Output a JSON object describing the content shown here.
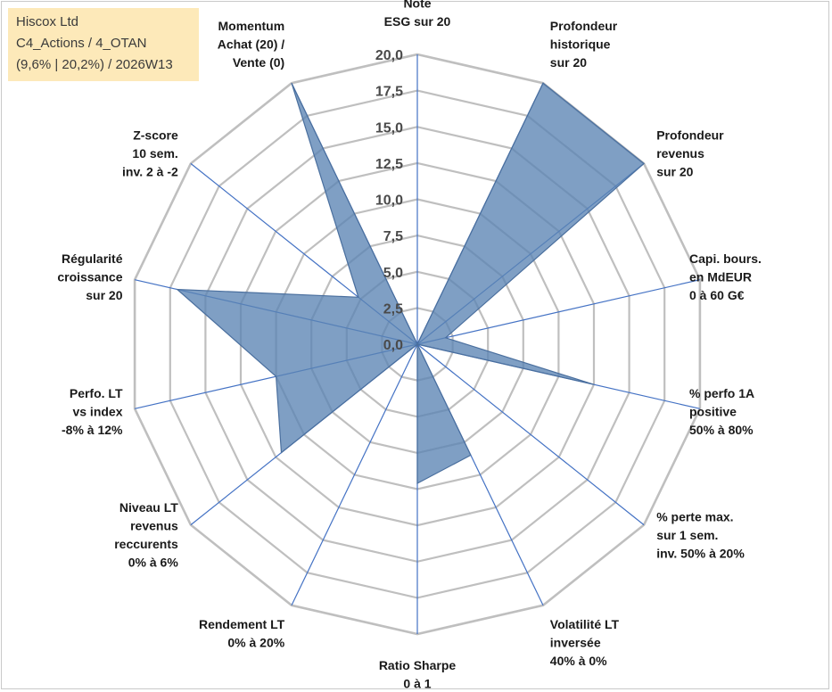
{
  "info": {
    "company": "Hiscox Ltd",
    "category": "C4_Actions / 4_OTAN",
    "period": "(9,6% | 20,2%) / 2026W13"
  },
  "colors": {
    "grid": "#bfbfbf",
    "spoke": "#4472c4",
    "fill": "#5b84b4",
    "stroke": "#4a6f9e"
  },
  "chart_data": {
    "type": "radar",
    "title": "",
    "rmin": 0,
    "rmax": 20,
    "ticks": [
      "0,0",
      "2,5",
      "5,0",
      "7,5",
      "10,0",
      "12,5",
      "15,0",
      "17,5",
      "20,0"
    ],
    "axes": [
      {
        "label": [
          "Note",
          "ESG sur 20"
        ],
        "value": 0
      },
      {
        "label": [
          "Profondeur",
          "historique",
          "sur 20"
        ],
        "value": 20
      },
      {
        "label": [
          "Profondeur",
          "revenus",
          "sur 20"
        ],
        "value": 20
      },
      {
        "label": [
          "Capi. bours.",
          "en MdEUR",
          "0 à 60 G€"
        ],
        "value": 2
      },
      {
        "label": [
          "% perfo 1A",
          "positive",
          "50% à 80%"
        ],
        "value": 12.5
      },
      {
        "label": [
          "% perte max.",
          "sur 1 sem.",
          "inv. 50% à 20%"
        ],
        "value": 0
      },
      {
        "label": [
          "Volatilité LT",
          "inversée",
          "40% à 0%"
        ],
        "value": 8.5
      },
      {
        "label": [
          "Ratio Sharpe",
          "0 à 1"
        ],
        "value": 9.6
      },
      {
        "label": [
          "Rendement LT",
          "0% à 20%"
        ],
        "value": 0
      },
      {
        "label": [
          "Niveau LT",
          "revenus",
          "reccurents",
          "0% à 6%"
        ],
        "value": 12
      },
      {
        "label": [
          "Perfo. LT",
          "vs index",
          "-8% à 12%"
        ],
        "value": 10
      },
      {
        "label": [
          "Régularité",
          "croissance",
          "sur 20"
        ],
        "value": 17
      },
      {
        "label": [
          "Z-score",
          "10 sem.",
          "inv. 2 à -2"
        ],
        "value": 5.2
      },
      {
        "label": [
          "Momentum",
          "Achat (20) /",
          "Vente (0)"
        ],
        "value": 20
      }
    ]
  }
}
